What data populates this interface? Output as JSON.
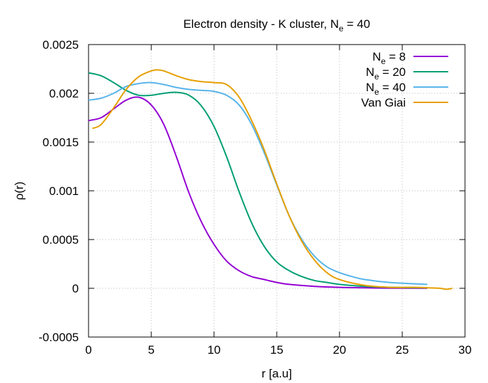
{
  "chart_data": {
    "type": "line",
    "title": {
      "main": "Electron density - K cluster, N",
      "sub": "e",
      "tail": " = 40"
    },
    "xlabel": "r [a.u]",
    "ylabel": "ρ(r)",
    "xlim": [
      0,
      30
    ],
    "ylim": [
      -0.0005,
      0.0025
    ],
    "xticks": [
      0,
      5,
      10,
      15,
      20,
      25,
      30
    ],
    "yticks": [
      -0.0005,
      0,
      0.0005,
      0.001,
      0.0015,
      0.002,
      0.0025
    ],
    "xtick_labels": [
      "0",
      "5",
      "10",
      "15",
      "20",
      "25",
      "30"
    ],
    "ytick_labels": [
      "-0.0005",
      "0",
      "0.0005",
      "0.001",
      "0.0015",
      "0.002",
      "0.0025"
    ],
    "grid": true,
    "legend_position": "top-right",
    "series": [
      {
        "name": {
          "base": "N",
          "sub": "e",
          "tail": " = 8"
        },
        "color": "#9400d3",
        "x": [
          0,
          1,
          2,
          3,
          4,
          5,
          6,
          7,
          8,
          9,
          10,
          11,
          12,
          13,
          14,
          15,
          16,
          18,
          20,
          22,
          24,
          27
        ],
        "y": [
          0.00172,
          0.00175,
          0.00184,
          0.00193,
          0.00196,
          0.00188,
          0.00168,
          0.00135,
          0.00098,
          0.00068,
          0.00045,
          0.00028,
          0.00018,
          0.00012,
          9e-05,
          6e-05,
          4e-05,
          2e-05,
          1e-05,
          5e-06,
          2e-06,
          1e-06
        ]
      },
      {
        "name": {
          "base": "N",
          "sub": "e",
          "tail": " = 20"
        },
        "color": "#009e73",
        "x": [
          0,
          1,
          2,
          3,
          4,
          5,
          6,
          7,
          8,
          9,
          10,
          11,
          12,
          13,
          14,
          15,
          16,
          17,
          18,
          19,
          20,
          22,
          24,
          27
        ],
        "y": [
          0.00221,
          0.00218,
          0.00211,
          0.00203,
          0.00198,
          0.00198,
          0.002,
          0.00201,
          0.00198,
          0.00187,
          0.00166,
          0.00135,
          0.00099,
          0.00067,
          0.00043,
          0.00027,
          0.00018,
          0.00012,
          8e-05,
          6e-05,
          4e-05,
          2e-05,
          1e-05,
          5e-06
        ]
      },
      {
        "name": {
          "base": "N",
          "sub": "e",
          "tail": " = 40"
        },
        "color": "#56b4e9",
        "x": [
          0,
          1,
          2,
          3,
          4,
          5,
          6,
          7,
          8,
          9,
          10,
          11,
          12,
          13,
          14,
          15,
          16,
          17,
          18,
          19,
          20,
          21,
          22,
          24,
          27
        ],
        "y": [
          0.00193,
          0.00195,
          0.002,
          0.00207,
          0.0021,
          0.00211,
          0.00209,
          0.00206,
          0.00204,
          0.00203,
          0.00202,
          0.00198,
          0.00188,
          0.00168,
          0.00139,
          0.00106,
          0.00074,
          0.0005,
          0.00033,
          0.00022,
          0.00016,
          0.00012,
          9e-05,
          6e-05,
          4e-05
        ]
      },
      {
        "name": {
          "base": "Van Giai",
          "sub": "",
          "tail": ""
        },
        "color": "#e69f00",
        "x": [
          0.3,
          1,
          2,
          3,
          4,
          5,
          5.5,
          6,
          7,
          8,
          9,
          10,
          11,
          12,
          13,
          14,
          15,
          16,
          17,
          18,
          19,
          20,
          22,
          24,
          26,
          27,
          28,
          28.5,
          29
        ],
        "y": [
          0.00164,
          0.00168,
          0.00185,
          0.00204,
          0.00217,
          0.00223,
          0.00224,
          0.00223,
          0.00218,
          0.00214,
          0.00212,
          0.00211,
          0.00209,
          0.00196,
          0.00172,
          0.00142,
          0.00107,
          0.00074,
          0.00048,
          0.00029,
          0.00016,
          9e-05,
          3e-05,
          1e-05,
          1e-05,
          5e-06,
          0.0,
          -1e-05,
          0.0
        ]
      }
    ]
  }
}
